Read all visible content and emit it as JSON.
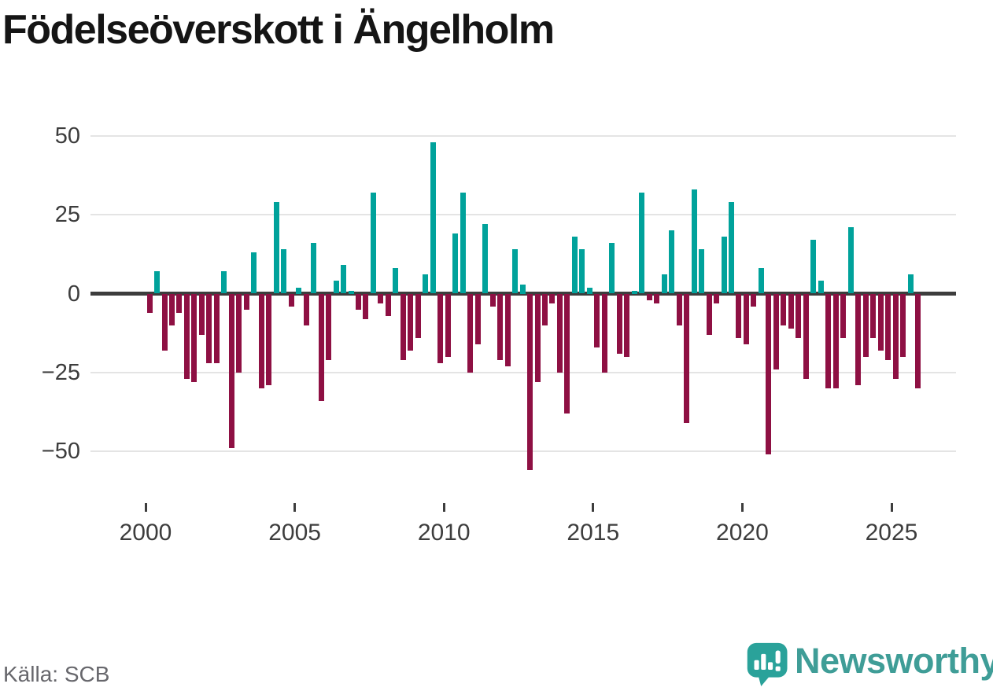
{
  "title": "Födelseöverskott i Ängelholm",
  "source": "Källa: SCB",
  "brand": {
    "name": "Newsworthy",
    "icon": "speech-bubble-bar-chart-icon",
    "wordmark_color": "#3f9d97",
    "bubble_color": "#2aa29a"
  },
  "colors": {
    "positive": "#00a29b",
    "negative": "#8e1043",
    "axis_line": "#3d3d3d",
    "grid": "#e4e4e4",
    "tick_text": "#3d3d3d",
    "source_text": "#67676c",
    "title_text": "#151515",
    "background": "#ffffff"
  },
  "chart_data": {
    "type": "bar",
    "title": "Födelseöverskott i Ängelholm",
    "xlabel": "",
    "ylabel": "",
    "ylim": [
      -60,
      55
    ],
    "yticks": [
      50,
      25,
      0,
      -25,
      -50
    ],
    "xticks": [
      2000,
      2005,
      2010,
      2015,
      2020,
      2025
    ],
    "grid": true,
    "legend": "none",
    "x": [
      "2000 Q1",
      "2000 Q2",
      "2000 Q3",
      "2000 Q4",
      "2001 Q1",
      "2001 Q2",
      "2001 Q3",
      "2001 Q4",
      "2002 Q1",
      "2002 Q2",
      "2002 Q3",
      "2002 Q4",
      "2003 Q1",
      "2003 Q2",
      "2003 Q3",
      "2003 Q4",
      "2004 Q1",
      "2004 Q2",
      "2004 Q3",
      "2004 Q4",
      "2005 Q1",
      "2005 Q2",
      "2005 Q3",
      "2005 Q4",
      "2006 Q1",
      "2006 Q2",
      "2006 Q3",
      "2006 Q4",
      "2007 Q1",
      "2007 Q2",
      "2007 Q3",
      "2007 Q4",
      "2008 Q1",
      "2008 Q2",
      "2008 Q3",
      "2008 Q4",
      "2009 Q1",
      "2009 Q2",
      "2009 Q3",
      "2009 Q4",
      "2010 Q1",
      "2010 Q2",
      "2010 Q3",
      "2010 Q4",
      "2011 Q1",
      "2011 Q2",
      "2011 Q3",
      "2011 Q4",
      "2012 Q1",
      "2012 Q2",
      "2012 Q3",
      "2012 Q4",
      "2013 Q1",
      "2013 Q2",
      "2013 Q3",
      "2013 Q4",
      "2014 Q1",
      "2014 Q2",
      "2014 Q3",
      "2014 Q4",
      "2015 Q1",
      "2015 Q2",
      "2015 Q3",
      "2015 Q4",
      "2016 Q1",
      "2016 Q2",
      "2016 Q3",
      "2016 Q4",
      "2017 Q1",
      "2017 Q2",
      "2017 Q3",
      "2017 Q4",
      "2018 Q1",
      "2018 Q2",
      "2018 Q3",
      "2018 Q4",
      "2019 Q1",
      "2019 Q2",
      "2019 Q3",
      "2019 Q4",
      "2020 Q1",
      "2020 Q2",
      "2020 Q3",
      "2020 Q4",
      "2021 Q1",
      "2021 Q2",
      "2021 Q3",
      "2021 Q4",
      "2022 Q1",
      "2022 Q2",
      "2022 Q3",
      "2022 Q4",
      "2023 Q1",
      "2023 Q2",
      "2023 Q3",
      "2023 Q4",
      "2024 Q1",
      "2024 Q2",
      "2024 Q3",
      "2024 Q4",
      "2025 Q1",
      "2025 Q2",
      "2025 Q3",
      "2025 Q4"
    ],
    "values": [
      -6,
      7,
      -18,
      -10,
      -6,
      -27,
      -28,
      -13,
      -22,
      -22,
      7,
      -49,
      -25,
      -5,
      13,
      -30,
      -29,
      29,
      14,
      -4,
      2,
      -10,
      16,
      -34,
      -21,
      4,
      9,
      1,
      -5,
      -8,
      32,
      -3,
      -7,
      8,
      -21,
      -18,
      -14,
      6,
      48,
      -22,
      -20,
      19,
      32,
      -25,
      -16,
      22,
      -4,
      -21,
      -23,
      14,
      3,
      -56,
      -28,
      -10,
      -3,
      -25,
      -38,
      18,
      14,
      2,
      -17,
      -25,
      16,
      -19,
      -20,
      1,
      32,
      -2,
      -3,
      6,
      20,
      -10,
      -41,
      33,
      14,
      -13,
      -3,
      18,
      29,
      -14,
      -16,
      -4,
      8,
      -51,
      -24,
      -10,
      -11,
      -14,
      -27,
      17,
      4,
      -30,
      -30,
      -14,
      21,
      -29,
      -20,
      -14,
      -18,
      -21,
      -27,
      -20,
      6,
      -30
    ]
  }
}
